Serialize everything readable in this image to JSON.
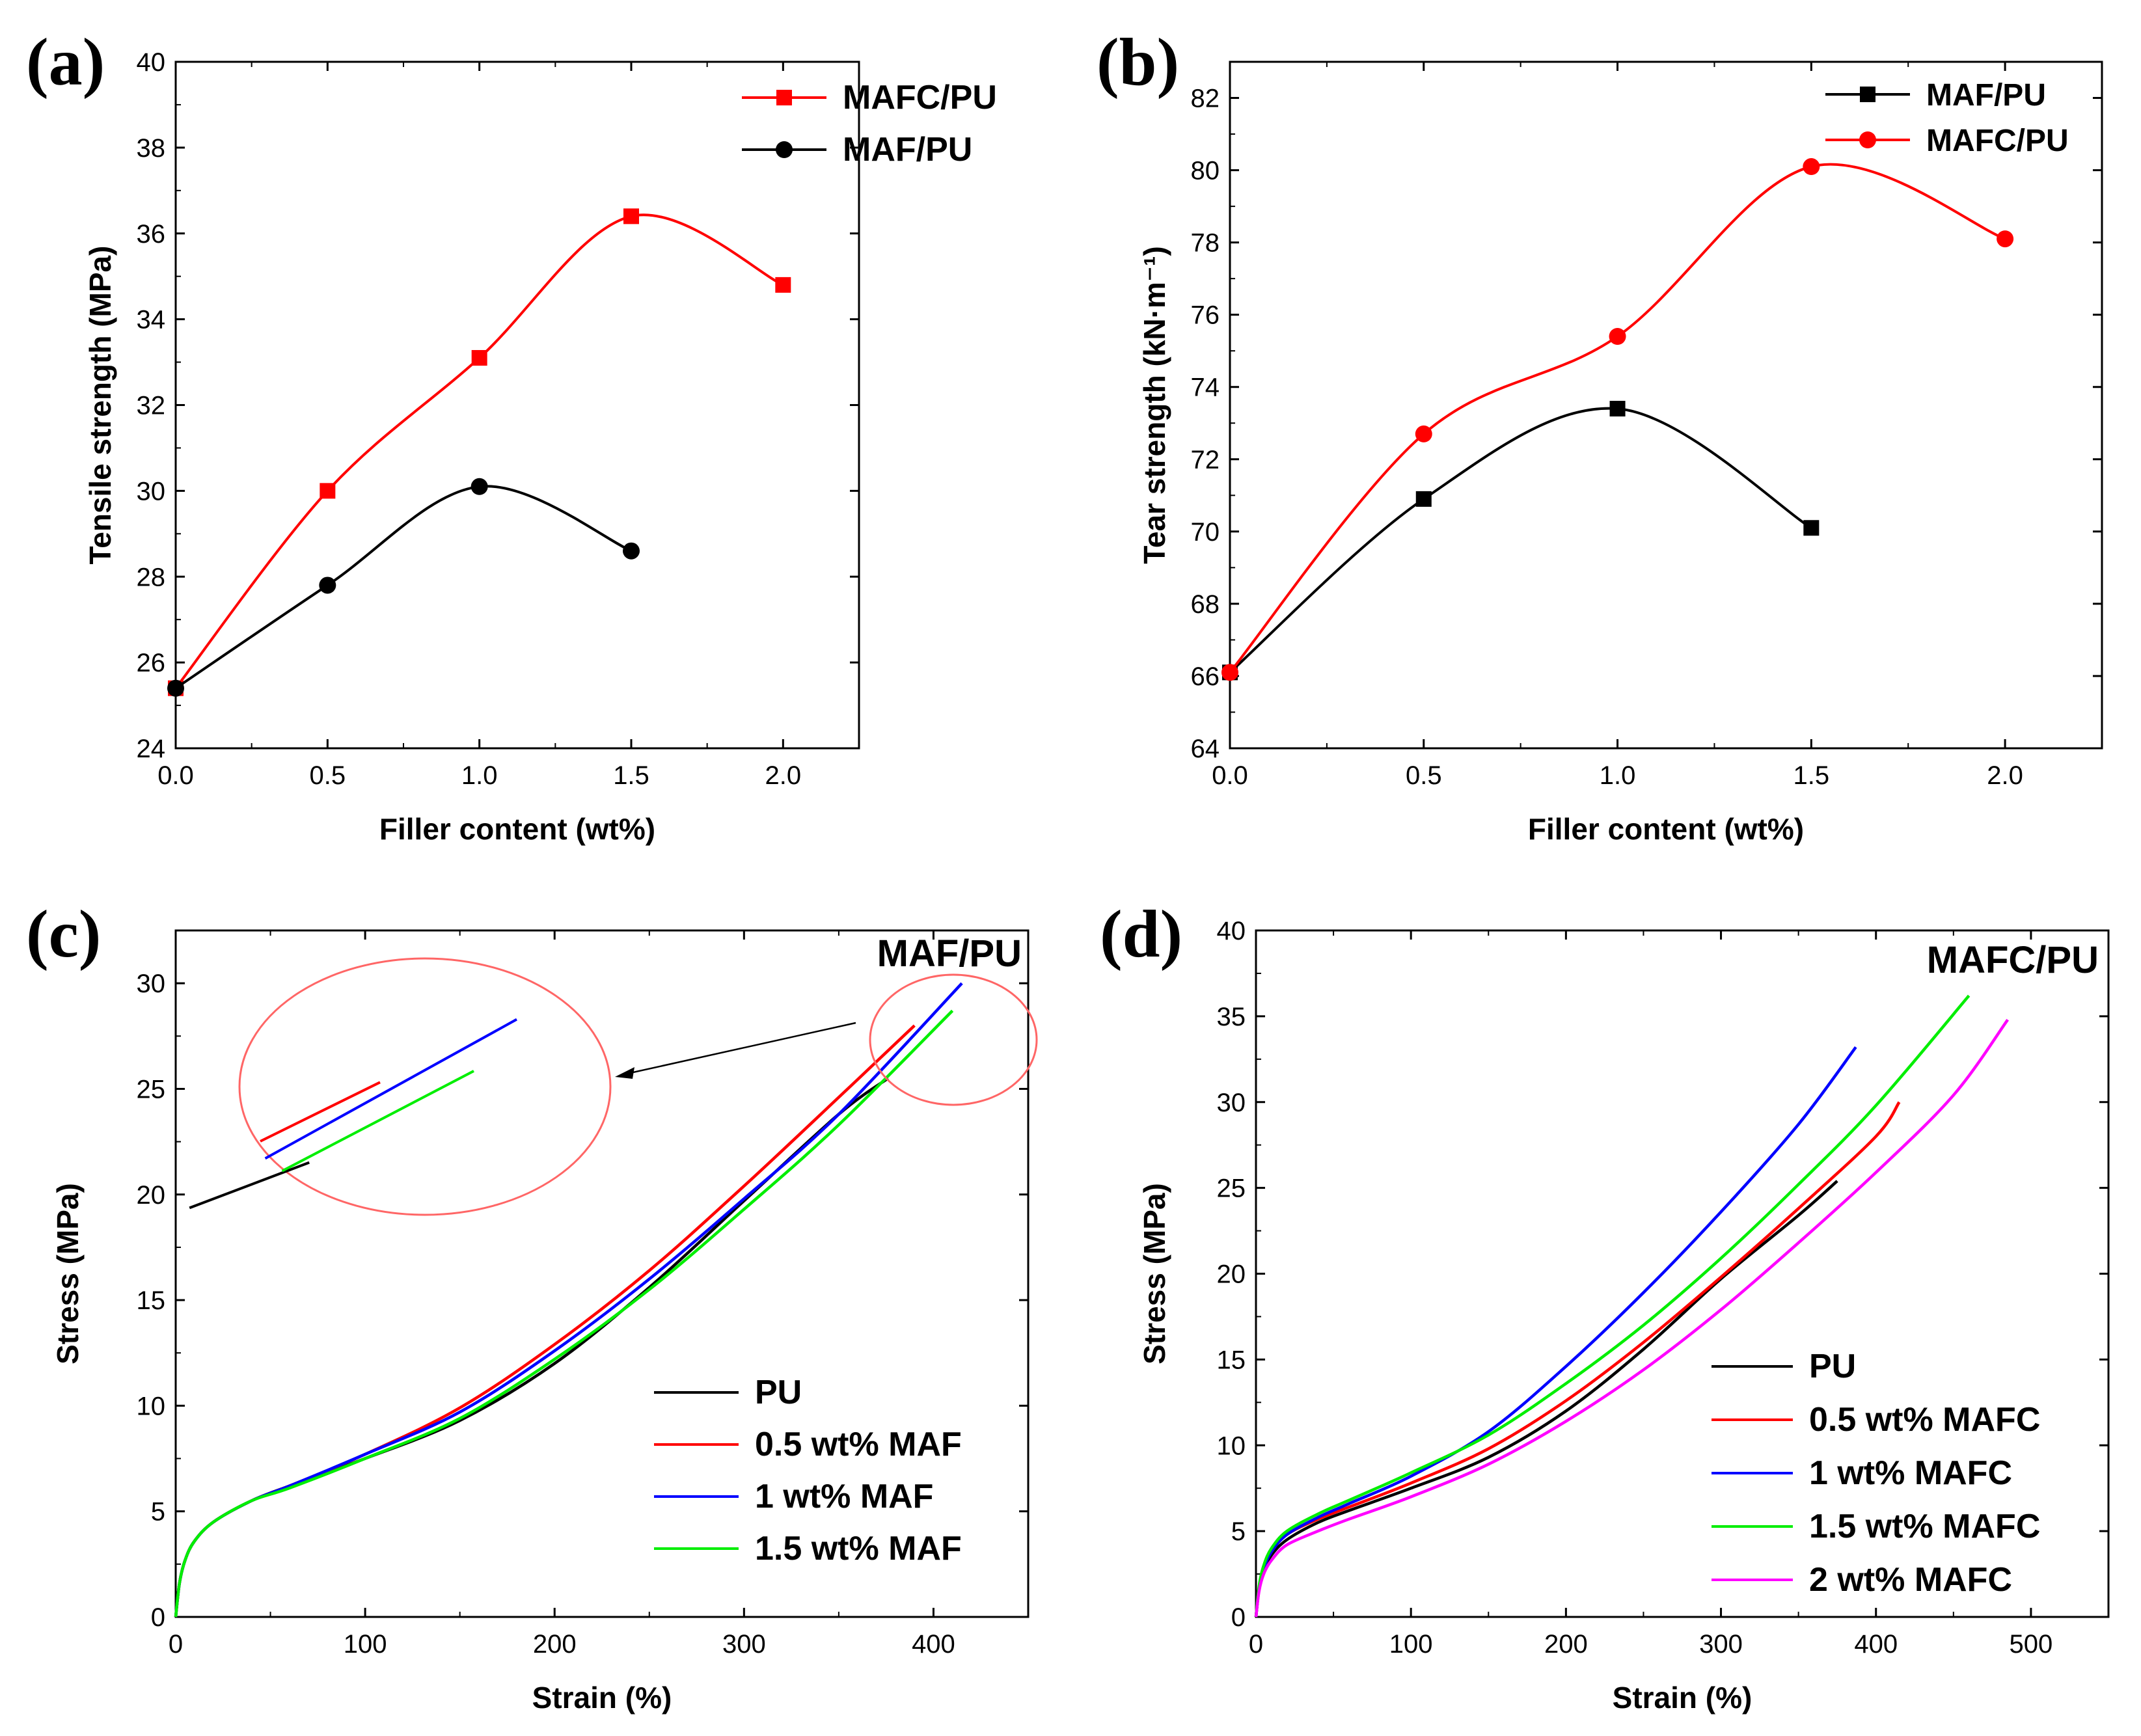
{
  "chart_data": [
    {
      "panel": "(a)",
      "type": "line",
      "xlabel": "Filler content  (wt%)",
      "ylabel": "Tensile strength (MPa)",
      "xlim": [
        0.0,
        2.25
      ],
      "ylim": [
        24,
        40
      ],
      "xticks": [
        "0.0",
        "0.5",
        "1.0",
        "1.5",
        "2.0"
      ],
      "yticks": [
        "24",
        "26",
        "28",
        "30",
        "32",
        "34",
        "36",
        "38",
        "40"
      ],
      "legend_position": "top-right",
      "series": [
        {
          "name": "MAFC/PU",
          "color": "#ff0000",
          "marker": "square",
          "x": [
            0.0,
            0.5,
            1.0,
            1.5,
            2.0
          ],
          "y": [
            25.4,
            30.0,
            33.1,
            36.4,
            34.8
          ]
        },
        {
          "name": "MAF/PU",
          "color": "#000000",
          "marker": "circle",
          "x": [
            0.0,
            0.5,
            1.0,
            1.5
          ],
          "y": [
            25.4,
            27.8,
            30.1,
            28.6
          ]
        }
      ]
    },
    {
      "panel": "(b)",
      "type": "line",
      "xlabel": "Filler content  (wt%)",
      "ylabel": "Tear strength (kN·m⁻¹)",
      "xlim": [
        0.0,
        2.25
      ],
      "ylim": [
        64,
        83
      ],
      "xticks": [
        "0.0",
        "0.5",
        "1.0",
        "1.5",
        "2.0"
      ],
      "yticks": [
        "64",
        "66",
        "68",
        "70",
        "72",
        "74",
        "76",
        "78",
        "80",
        "82"
      ],
      "legend_position": "top-right",
      "series": [
        {
          "name": "MAF/PU",
          "color": "#000000",
          "marker": "square",
          "x": [
            0.0,
            0.5,
            1.0,
            1.5
          ],
          "y": [
            66.1,
            70.9,
            73.4,
            70.1
          ]
        },
        {
          "name": "MAFC/PU",
          "color": "#ff0000",
          "marker": "circle",
          "x": [
            0.0,
            0.5,
            1.0,
            1.5,
            2.0
          ],
          "y": [
            66.1,
            72.7,
            75.4,
            80.1,
            78.1
          ]
        }
      ]
    },
    {
      "panel": "(c)",
      "type": "line",
      "title": "MAF/PU",
      "xlabel": "Strain (%)",
      "ylabel": "Stress (MPa)",
      "xlim": [
        0,
        450
      ],
      "ylim": [
        0,
        32.5
      ],
      "xticks": [
        "0",
        "100",
        "200",
        "300",
        "400"
      ],
      "yticks": [
        "0",
        "5",
        "10",
        "15",
        "20",
        "25",
        "30"
      ],
      "legend_position": "bottom-right",
      "annotation": "zoomed inset of curve end points near 380-420 % strain",
      "series": [
        {
          "name": "PU",
          "color": "#000000",
          "x": [
            0,
            2,
            5,
            10,
            20,
            40,
            60,
            100,
            150,
            200,
            250,
            300,
            350,
            376
          ],
          "y": [
            0,
            1.6,
            2.7,
            3.6,
            4.5,
            5.5,
            6.2,
            7.5,
            9.3,
            12.0,
            15.6,
            19.7,
            23.8,
            25.5
          ]
        },
        {
          "name": "0.5 wt% MAF",
          "color": "#ff0000",
          "x": [
            0,
            2,
            5,
            10,
            20,
            40,
            60,
            100,
            150,
            200,
            250,
            300,
            350,
            390
          ],
          "y": [
            0,
            1.6,
            2.7,
            3.6,
            4.5,
            5.5,
            6.2,
            7.7,
            9.9,
            12.9,
            16.4,
            20.4,
            24.6,
            28.0
          ]
        },
        {
          "name": "1 wt% MAF",
          "color": "#0000ff",
          "x": [
            0,
            2,
            5,
            10,
            20,
            40,
            60,
            100,
            150,
            200,
            250,
            300,
            350,
            415
          ],
          "y": [
            0,
            1.6,
            2.7,
            3.6,
            4.5,
            5.5,
            6.2,
            7.7,
            9.7,
            12.6,
            16.0,
            19.8,
            23.8,
            30.0
          ]
        },
        {
          "name": "1.5 wt% MAF",
          "color": "#00ee00",
          "x": [
            0,
            2,
            5,
            10,
            20,
            40,
            60,
            100,
            150,
            200,
            250,
            300,
            350,
            410
          ],
          "y": [
            0,
            1.6,
            2.7,
            3.6,
            4.5,
            5.5,
            6.1,
            7.5,
            9.4,
            12.2,
            15.5,
            19.3,
            23.3,
            28.7
          ]
        }
      ]
    },
    {
      "panel": "(d)",
      "type": "line",
      "title": "MAFC/PU",
      "xlabel": "Strain (%)",
      "ylabel": "Stress (MPa)",
      "xlim": [
        0,
        550
      ],
      "ylim": [
        0,
        40
      ],
      "xticks": [
        "0",
        "100",
        "200",
        "300",
        "400",
        "500"
      ],
      "yticks": [
        "0",
        "5",
        "10",
        "15",
        "20",
        "25",
        "30",
        "35",
        "40"
      ],
      "legend_position": "bottom-right",
      "series": [
        {
          "name": "PU",
          "color": "#000000",
          "x": [
            0,
            2,
            5,
            10,
            20,
            40,
            60,
            100,
            150,
            200,
            250,
            300,
            350,
            375
          ],
          "y": [
            0,
            1.6,
            2.7,
            3.6,
            4.5,
            5.5,
            6.2,
            7.5,
            9.3,
            12.0,
            15.6,
            19.7,
            23.4,
            25.4
          ]
        },
        {
          "name": "0.5 wt% MAFC",
          "color": "#ff0000",
          "x": [
            0,
            2,
            5,
            10,
            20,
            40,
            60,
            100,
            150,
            200,
            250,
            300,
            350,
            400,
            415
          ],
          "y": [
            0,
            1.7,
            2.8,
            3.8,
            4.8,
            5.7,
            6.4,
            7.8,
            9.8,
            12.6,
            16.0,
            19.8,
            23.8,
            28.0,
            30.0
          ]
        },
        {
          "name": "1 wt% MAFC",
          "color": "#0000ff",
          "x": [
            0,
            2,
            5,
            10,
            20,
            40,
            60,
            100,
            150,
            200,
            250,
            300,
            350,
            387
          ],
          "y": [
            0,
            1.7,
            2.8,
            3.8,
            4.8,
            5.8,
            6.6,
            8.2,
            10.8,
            14.6,
            18.9,
            23.6,
            28.7,
            33.2
          ]
        },
        {
          "name": "1.5 wt% MAFC",
          "color": "#00ee00",
          "x": [
            0,
            2,
            5,
            10,
            20,
            40,
            60,
            100,
            150,
            200,
            250,
            300,
            350,
            400,
            460
          ],
          "y": [
            0,
            1.8,
            3.0,
            4.0,
            5.0,
            6.0,
            6.8,
            8.4,
            10.6,
            13.6,
            17.0,
            20.9,
            25.2,
            29.8,
            36.2
          ]
        },
        {
          "name": "2 wt% MAFC",
          "color": "#ff00ff",
          "x": [
            0,
            2,
            5,
            10,
            20,
            40,
            60,
            100,
            150,
            200,
            250,
            300,
            350,
            400,
            450,
            485
          ],
          "y": [
            0,
            1.5,
            2.5,
            3.3,
            4.2,
            5.0,
            5.7,
            7.0,
            8.9,
            11.4,
            14.4,
            17.9,
            21.8,
            25.9,
            30.4,
            34.8
          ]
        }
      ]
    }
  ]
}
